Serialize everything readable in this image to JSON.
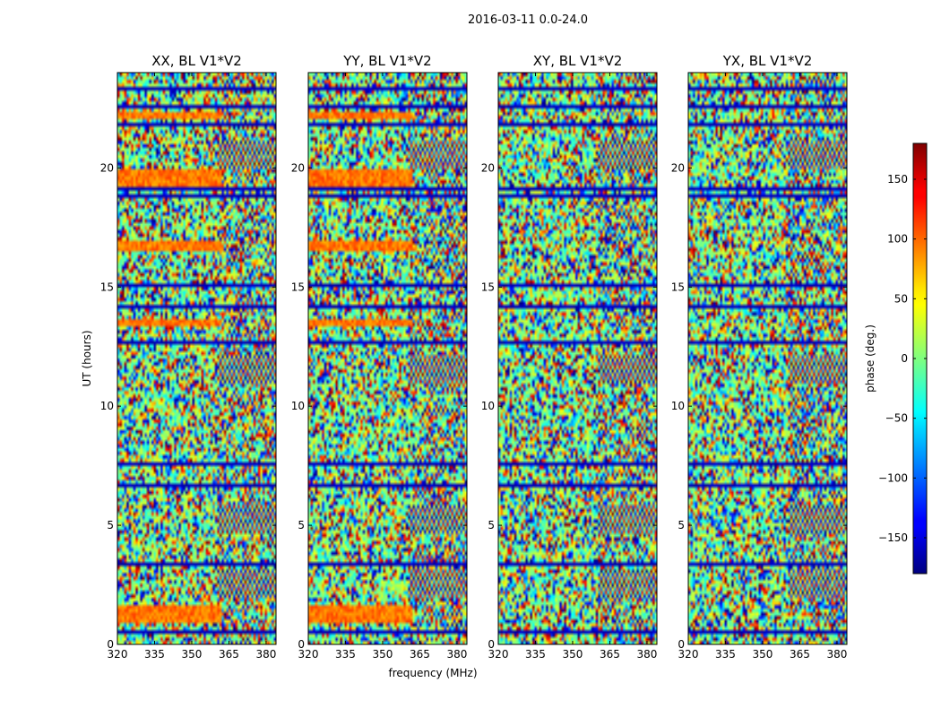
{
  "chart_data": {
    "type": "heatmap",
    "suptitle": "2016-03-11 0.0-24.0",
    "xlabel": "frequency (MHz)",
    "ylabel": "UT (hours)",
    "xlim": [
      320,
      384
    ],
    "ylim": [
      0,
      24
    ],
    "xticks": [
      320,
      335,
      350,
      365,
      380
    ],
    "yticks": [
      0,
      5,
      10,
      15,
      20
    ],
    "colormap": "jet",
    "colorbar": {
      "label": "phase (deg.)",
      "range": [
        -180,
        180
      ],
      "ticks": [
        150,
        100,
        50,
        0,
        -50,
        -100,
        -150
      ],
      "tick_labels": [
        "150",
        "100",
        "50",
        "0",
        "−50",
        "−100",
        "−150"
      ]
    },
    "panels": [
      {
        "title": "XX, BL V1*V2",
        "polarization": "XX"
      },
      {
        "title": "YY, BL V1*V2",
        "polarization": "YY"
      },
      {
        "title": "XY, BL V1*V2",
        "polarization": "XY"
      },
      {
        "title": "YX, BL V1*V2",
        "polarization": "YX"
      }
    ],
    "coherent_bands_hours": [
      [
        0.9,
        1.7
      ],
      [
        13.4,
        13.7
      ],
      [
        22.0,
        22.3
      ],
      [
        19.2,
        19.9
      ],
      [
        16.5,
        16.9
      ]
    ],
    "fringe_feature_hours": [
      20.5,
      2.5,
      5.2,
      11.5
    ],
    "flagged_rows_hours": [
      0.5,
      3.4,
      3.6,
      4.5,
      6.7,
      7.6,
      8.4,
      9.6,
      12.0,
      12.7,
      14.2,
      15.1,
      15.9,
      17.4,
      18.0,
      18.8,
      19.1,
      21.8,
      22.6,
      23.3
    ]
  }
}
